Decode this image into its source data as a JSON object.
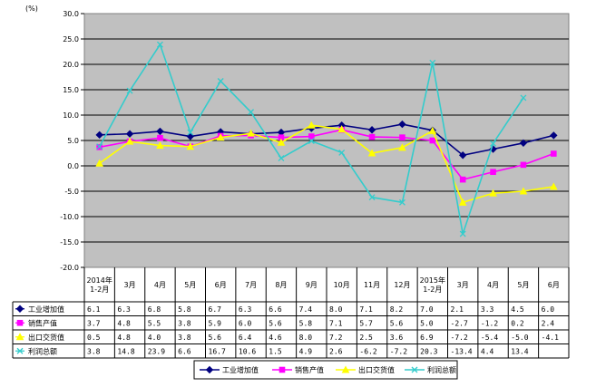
{
  "chart_data": {
    "type": "line",
    "unit_label": "(%)",
    "ylim": [
      -20,
      30
    ],
    "y_ticks": [
      "30.0",
      "25.0",
      "20.0",
      "15.0",
      "10.0",
      "5.0",
      "0.0",
      "-5.0",
      "-10.0",
      "-15.0",
      "-20.0"
    ],
    "y_tick_values": [
      30,
      25,
      20,
      15,
      10,
      5,
      0,
      -5,
      -10,
      -15,
      -20
    ],
    "categories": [
      "2014年1-2月",
      "3月",
      "4月",
      "5月",
      "6月",
      "7月",
      "8月",
      "9月",
      "10月",
      "11月",
      "12月",
      "2015年1-2月",
      "3月",
      "4月",
      "5月",
      "6月"
    ],
    "category_lines": [
      [
        "2014年",
        "1-2月"
      ],
      [
        "3月"
      ],
      [
        "4月"
      ],
      [
        "5月"
      ],
      [
        "6月"
      ],
      [
        "7月"
      ],
      [
        "8月"
      ],
      [
        "9月"
      ],
      [
        "10月"
      ],
      [
        "11月"
      ],
      [
        "12月"
      ],
      [
        "2015年",
        "1-2月"
      ],
      [
        "3月"
      ],
      [
        "4月"
      ],
      [
        "5月"
      ],
      [
        "6月"
      ]
    ],
    "grid": true,
    "legend_position": "bottom",
    "series": [
      {
        "name": "工业增加值",
        "color": "#000080",
        "marker": "diamond",
        "values": [
          6.1,
          6.3,
          6.8,
          5.8,
          6.7,
          6.3,
          6.6,
          7.4,
          8.0,
          7.1,
          8.2,
          7.0,
          2.1,
          3.3,
          4.5,
          6.0
        ],
        "labels": [
          "6.1",
          "6.3",
          "6.8",
          "5.8",
          "6.7",
          "6.3",
          "6.6",
          "7.4",
          "8.0",
          "7.1",
          "8.2",
          "7.0",
          "2.1",
          "3.3",
          "4.5",
          "6.0"
        ]
      },
      {
        "name": "销售产值",
        "color": "#FF00FF",
        "marker": "square",
        "values": [
          3.7,
          4.8,
          5.5,
          3.8,
          5.9,
          6.0,
          5.6,
          5.8,
          7.1,
          5.7,
          5.6,
          5.0,
          -2.7,
          -1.2,
          0.2,
          2.4
        ],
        "labels": [
          "3.7",
          "4.8",
          "5.5",
          "3.8",
          "5.9",
          "6.0",
          "5.6",
          "5.8",
          "7.1",
          "5.7",
          "5.6",
          "5.0",
          "-2.7",
          "-1.2",
          "0.2",
          "2.4"
        ]
      },
      {
        "name": "出口交货值",
        "color": "#FFFF00",
        "marker": "triangle",
        "values": [
          0.5,
          4.8,
          4.0,
          3.8,
          5.6,
          6.4,
          4.6,
          8.0,
          7.2,
          2.5,
          3.6,
          6.9,
          -7.2,
          -5.4,
          -5.0,
          -4.1
        ],
        "labels": [
          "0.5",
          "4.8",
          "4.0",
          "3.8",
          "5.6",
          "6.4",
          "4.6",
          "8.0",
          "7.2",
          "2.5",
          "3.6",
          "6.9",
          "-7.2",
          "-5.4",
          "-5.0",
          "-4.1"
        ]
      },
      {
        "name": "利润总额",
        "color": "#33CCCC",
        "marker": "x",
        "values": [
          3.8,
          14.8,
          23.9,
          6.6,
          16.7,
          10.6,
          1.5,
          4.9,
          2.6,
          -6.2,
          -7.2,
          20.3,
          -13.4,
          4.4,
          13.4,
          null
        ],
        "labels": [
          "3.8",
          "14.8",
          "23.9",
          "6.6",
          "16.7",
          "10.6",
          "1.5",
          "4.9",
          "2.6",
          "-6.2",
          "-7.2",
          "20.3",
          "-13.4",
          "4.4",
          "13.4",
          ""
        ]
      }
    ]
  }
}
